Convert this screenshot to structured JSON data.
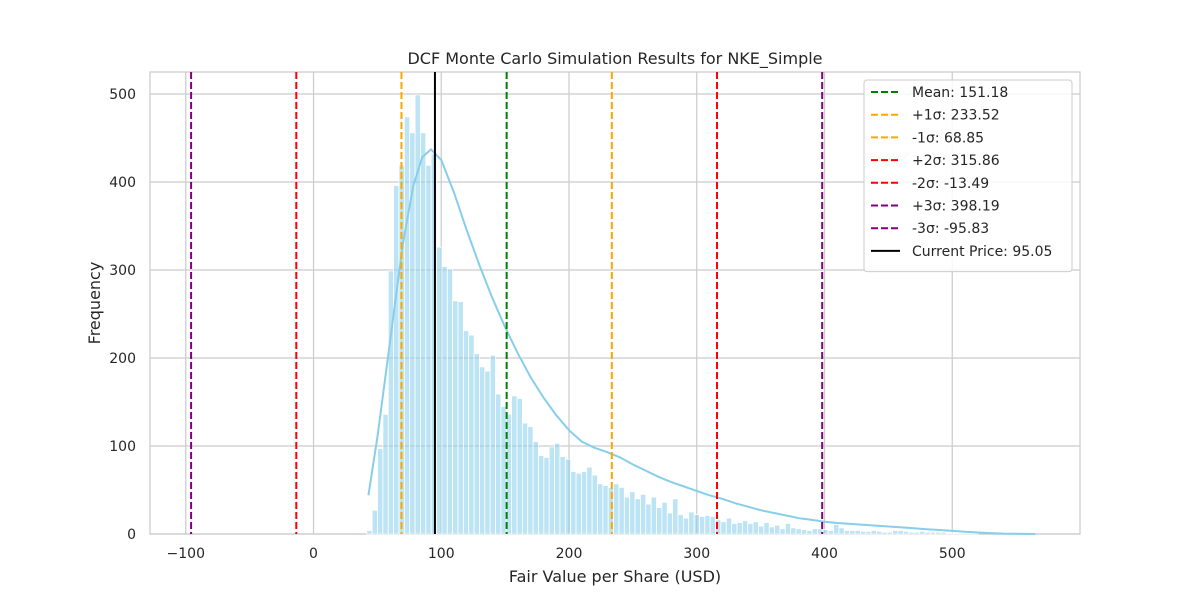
{
  "chart_data": {
    "type": "histogram",
    "title": "DCF Monte Carlo Simulation Results for NKE_Simple",
    "xlabel": "Fair Value per Share (USD)",
    "ylabel": "Frequency",
    "xlim": [
      -128,
      600
    ],
    "ylim": [
      0,
      525
    ],
    "xticks": [
      -100,
      0,
      100,
      200,
      300,
      400,
      500
    ],
    "yticks": [
      0,
      100,
      200,
      300,
      400,
      500
    ],
    "grid": true,
    "legend_position": "top-right",
    "bin_width": 4.2,
    "bin_start": 41.7,
    "bar_color": "#87ceeb",
    "kde_color": "#87ceeb",
    "counts": [
      4,
      27,
      97,
      136,
      299,
      396,
      419,
      474,
      456,
      499,
      456,
      419,
      432,
      326,
      304,
      301,
      265,
      264,
      231,
      226,
      205,
      190,
      185,
      203,
      159,
      145,
      136,
      157,
      154,
      126,
      122,
      105,
      89,
      87,
      99,
      103,
      88,
      85,
      71,
      69,
      71,
      76,
      67,
      57,
      55,
      53,
      57,
      53,
      42,
      48,
      40,
      45,
      34,
      42,
      30,
      36,
      24,
      40,
      22,
      18,
      25,
      22,
      20,
      21,
      20,
      16,
      14,
      18,
      12,
      13,
      15,
      12,
      14,
      9,
      13,
      8,
      10,
      6,
      12,
      7,
      6,
      5,
      4,
      6,
      6,
      5,
      4,
      11,
      7,
      4,
      4,
      4,
      3,
      3,
      4,
      3,
      2,
      2,
      4,
      4,
      3,
      2,
      2,
      3,
      2,
      2,
      2,
      2,
      1,
      1,
      1,
      1,
      1,
      1
    ],
    "kde_points": [
      [
        43,
        44
      ],
      [
        50,
        110
      ],
      [
        60,
        220
      ],
      [
        70,
        330
      ],
      [
        78,
        395
      ],
      [
        85,
        428
      ],
      [
        92,
        437
      ],
      [
        100,
        425
      ],
      [
        110,
        388
      ],
      [
        120,
        345
      ],
      [
        130,
        305
      ],
      [
        140,
        268
      ],
      [
        150,
        235
      ],
      [
        160,
        205
      ],
      [
        170,
        178
      ],
      [
        180,
        155
      ],
      [
        190,
        135
      ],
      [
        200,
        118
      ],
      [
        210,
        105
      ],
      [
        220,
        98
      ],
      [
        230,
        93
      ],
      [
        240,
        87
      ],
      [
        250,
        79
      ],
      [
        260,
        72
      ],
      [
        270,
        65
      ],
      [
        280,
        59
      ],
      [
        290,
        54
      ],
      [
        300,
        49
      ],
      [
        310,
        44
      ],
      [
        320,
        40
      ],
      [
        330,
        35
      ],
      [
        340,
        31
      ],
      [
        350,
        27
      ],
      [
        360,
        24
      ],
      [
        370,
        21
      ],
      [
        380,
        18
      ],
      [
        390,
        16
      ],
      [
        400,
        14
      ],
      [
        410,
        12.5
      ],
      [
        420,
        11.5
      ],
      [
        430,
        10.5
      ],
      [
        440,
        9.5
      ],
      [
        450,
        8.5
      ],
      [
        460,
        7.5
      ],
      [
        470,
        6.5
      ],
      [
        480,
        5.5
      ],
      [
        490,
        4.5
      ],
      [
        500,
        3.5
      ],
      [
        510,
        2.5
      ],
      [
        520,
        1.7
      ],
      [
        530,
        1
      ],
      [
        540,
        0.5
      ],
      [
        550,
        0.2
      ],
      [
        565,
        0.05
      ]
    ],
    "vlines": [
      {
        "label": "Mean: 151.18",
        "x": 151.18,
        "color": "#008000",
        "style": "dashed"
      },
      {
        "label": "+1σ: 233.52",
        "x": 233.52,
        "color": "#ffa500",
        "style": "dashed"
      },
      {
        "label": "-1σ: 68.85",
        "x": 68.85,
        "color": "#ffa500",
        "style": "dashed"
      },
      {
        "label": "+2σ: 315.86",
        "x": 315.86,
        "color": "#ff0000",
        "style": "dashed"
      },
      {
        "label": "-2σ: -13.49",
        "x": -13.49,
        "color": "#ff0000",
        "style": "dashed"
      },
      {
        "label": "+3σ: 398.19",
        "x": 398.19,
        "color": "#800080",
        "style": "dashed"
      },
      {
        "label": "-3σ: -95.83",
        "x": -95.83,
        "color": "#800080",
        "style": "dashed"
      },
      {
        "label": "Current Price: 95.05",
        "x": 95.05,
        "color": "#000000",
        "style": "solid"
      }
    ]
  }
}
